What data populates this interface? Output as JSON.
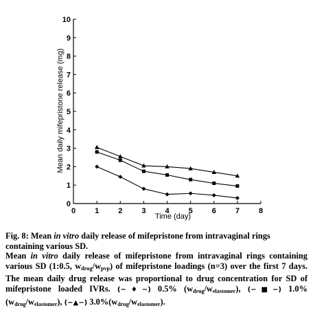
{
  "chart_data": {
    "type": "line",
    "xlabel": "Time (day)",
    "ylabel": "Mean daily mifepristone release (mg)",
    "xlim": [
      0,
      8
    ],
    "ylim": [
      0,
      10
    ],
    "xticks": [
      "0",
      "1",
      "2",
      "3",
      "4",
      "5",
      "6",
      "7",
      "8"
    ],
    "yticks": [
      "0",
      "1",
      "2",
      "3",
      "4",
      "5",
      "6",
      "7",
      "8",
      "9",
      "10"
    ],
    "x": [
      1,
      2,
      3,
      4,
      5,
      6,
      7
    ],
    "series": [
      {
        "marker": "diamond",
        "values": [
          2.0,
          1.45,
          0.8,
          0.5,
          0.55,
          0.45,
          0.3
        ]
      },
      {
        "marker": "square",
        "values": [
          2.8,
          2.35,
          1.75,
          1.55,
          1.3,
          1.1,
          0.95
        ]
      },
      {
        "marker": "triangle",
        "values": [
          3.05,
          2.55,
          2.05,
          2.0,
          1.9,
          1.7,
          1.5
        ]
      }
    ],
    "grid": false,
    "line_color": "#000000"
  },
  "caption": {
    "fig_label": "Fig. 8:",
    "title_a": " Mean ",
    "title_italic": "in vitro",
    "title_b": " daily release of mifepristone from intravaginal rings containing various SD.",
    "desc_a": "Mean ",
    "desc_italic": "in vitro",
    "desc_b": " daily release of mifepristone from intravaginal rings containing various SD (1:0.5, w",
    "sub_drug": "drug",
    "slash": "/w",
    "sub_pvp": "pvp",
    "desc_c": ") of mifepristone loadings (n=3) over the first 7 days. The mean daily drug release was proportional to drug concentration for SD of mifepristone loaded IVRs. ",
    "legend1_marker": "(−♦−)",
    "legend1_text": " 0.5% (w",
    "sub_elastomer": "elastomer",
    "legend_close": "), ",
    "legend2_marker": "(−■−)",
    "legend2_text": " 1.0% (w",
    "legend3_marker": "(−▲−)",
    "legend3_text": " 3.0%(w",
    "legend3_close": ")."
  }
}
